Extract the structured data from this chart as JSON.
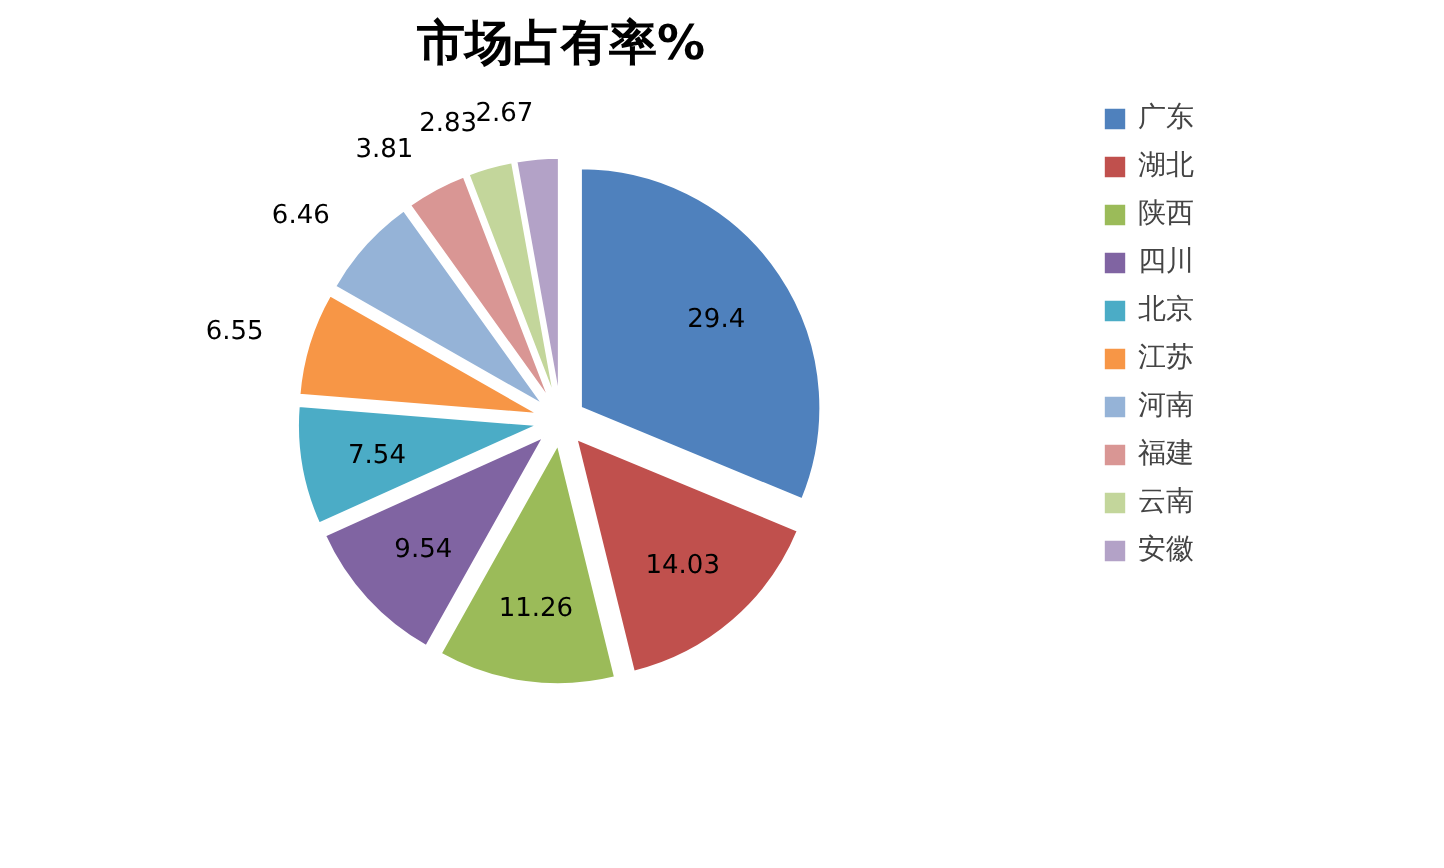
{
  "chart_data": {
    "type": "pie",
    "title": "市场占有率%",
    "categories": [
      "广东",
      "湖北",
      "陕西",
      "四川",
      "北京",
      "江苏",
      "河南",
      "福建",
      "云南",
      "安徽"
    ],
    "values": [
      29.4,
      14.03,
      11.26,
      9.54,
      7.54,
      6.55,
      6.46,
      3.81,
      2.83,
      2.67
    ],
    "colors": [
      "#4f81bd",
      "#c0504d",
      "#9bbb59",
      "#8064a2",
      "#4bacc6",
      "#f79646",
      "#95b3d7",
      "#d99694",
      "#c3d69b",
      "#b3a2c7"
    ],
    "data_labels": true,
    "legend": "right"
  }
}
